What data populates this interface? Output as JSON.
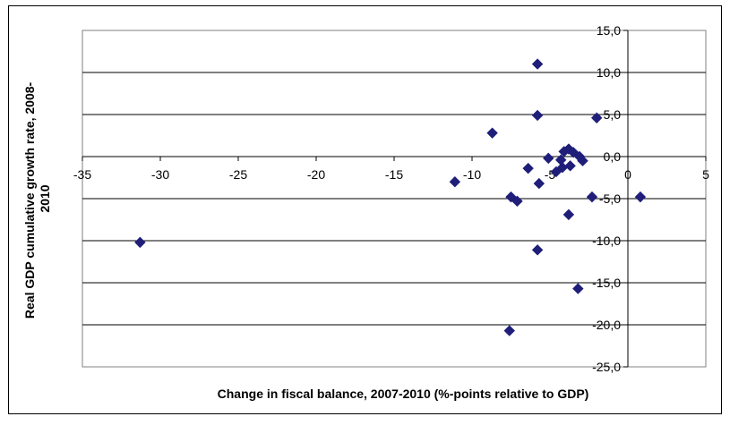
{
  "chart_data": {
    "type": "scatter",
    "title": "",
    "xlabel": "Change in fiscal balance, 2007-2010 (%-points relative to GDP)",
    "ylabel_lines": [
      "Real GDP cumulative growth rate, 2008-",
      "2010"
    ],
    "xlim": [
      -35,
      5
    ],
    "ylim": [
      -25,
      15
    ],
    "x_ticks": [
      -35,
      -30,
      -25,
      -20,
      -15,
      -10,
      -5,
      0,
      5
    ],
    "x_tick_labels": [
      "-35",
      "-30",
      "-25",
      "-20",
      "-15",
      "-10",
      "-5",
      "0",
      "5"
    ],
    "y_ticks": [
      15,
      10,
      5,
      0,
      -5,
      -10,
      -15,
      -20,
      -25
    ],
    "y_tick_labels": [
      "15,0",
      "10,0",
      "5,0",
      "0,0",
      "-5,0",
      "-10,0",
      "-15,0",
      "-20,0",
      "-25,0"
    ],
    "grid": "horizontal",
    "legend": "none",
    "marker_color": "#1F1F7A",
    "points": [
      {
        "x": -31.3,
        "y": -10.2
      },
      {
        "x": -11.1,
        "y": -3.0
      },
      {
        "x": -8.7,
        "y": 2.8
      },
      {
        "x": -7.5,
        "y": -4.8
      },
      {
        "x": -7.6,
        "y": -20.7
      },
      {
        "x": -7.1,
        "y": -5.3
      },
      {
        "x": -6.4,
        "y": -1.4
      },
      {
        "x": -5.8,
        "y": 11.0
      },
      {
        "x": -5.8,
        "y": 4.9
      },
      {
        "x": -5.8,
        "y": -11.1
      },
      {
        "x": -5.7,
        "y": -3.2
      },
      {
        "x": -5.1,
        "y": -0.2
      },
      {
        "x": -4.6,
        "y": -1.8
      },
      {
        "x": -4.3,
        "y": -0.4
      },
      {
        "x": -4.2,
        "y": -1.3
      },
      {
        "x": -4.1,
        "y": 0.6
      },
      {
        "x": -3.8,
        "y": 0.9
      },
      {
        "x": -3.7,
        "y": -1.1
      },
      {
        "x": -3.8,
        "y": -6.9
      },
      {
        "x": -3.5,
        "y": 0.5
      },
      {
        "x": -3.1,
        "y": 0.0
      },
      {
        "x": -2.9,
        "y": -0.5
      },
      {
        "x": -3.2,
        "y": -15.7
      },
      {
        "x": -2.3,
        "y": -4.8
      },
      {
        "x": -2.0,
        "y": 4.6
      },
      {
        "x": 0.8,
        "y": -4.8
      }
    ]
  }
}
